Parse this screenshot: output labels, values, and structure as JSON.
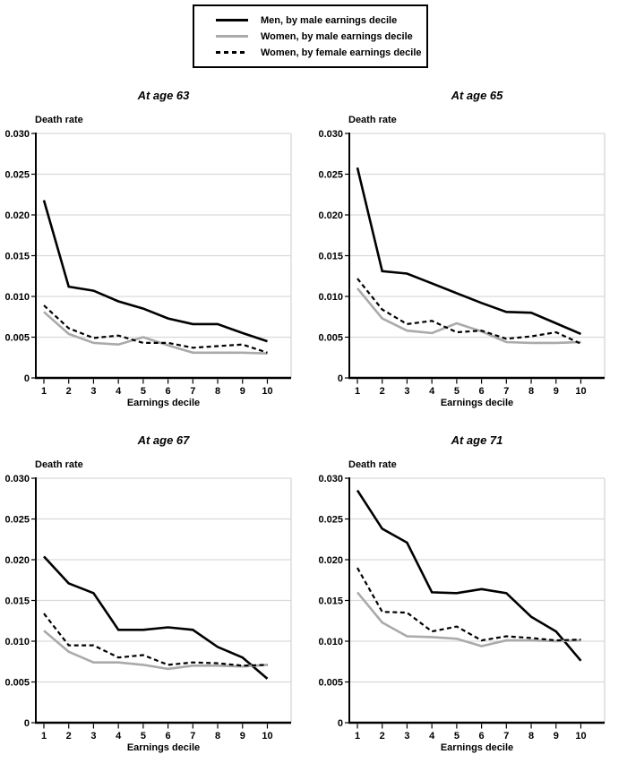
{
  "style": {
    "grid_color": "#d9d9d9",
    "axis_color": "#000000",
    "background": "#ffffff"
  },
  "legend": {
    "items": [
      {
        "label": "Men, by male earnings decile",
        "color": "#000000",
        "dash": null,
        "width": 2.6
      },
      {
        "label": "Women, by male earnings decile",
        "color": "#aaaaaa",
        "dash": null,
        "width": 2.6
      },
      {
        "label": "Women, by female earnings decile",
        "color": "#000000",
        "dash": "5 3.5",
        "width": 2.2
      }
    ],
    "position": "top-center"
  },
  "chart_data": [
    {
      "type": "line",
      "title": "At age 63",
      "ylabel": "Death rate",
      "xlabel": "Earnings decile",
      "x": [
        1,
        2,
        3,
        4,
        5,
        6,
        7,
        8,
        9,
        10
      ],
      "ylim": [
        0,
        0.03
      ],
      "yticks": [
        0,
        0.005,
        0.01,
        0.015,
        0.02,
        0.025,
        0.03
      ],
      "ytick_labels": [
        "0",
        "0.005",
        "0.010",
        "0.015",
        "0.020",
        "0.025",
        "0.030"
      ],
      "grid": true,
      "series": [
        {
          "name": "Men, by male earnings decile",
          "values": [
            0.0218,
            0.0112,
            0.0107,
            0.0094,
            0.0085,
            0.0073,
            0.0066,
            0.0066,
            0.0055,
            0.0045
          ]
        },
        {
          "name": "Women, by male earnings decile",
          "values": [
            0.0081,
            0.0054,
            0.0043,
            0.0041,
            0.005,
            0.004,
            0.0031,
            0.0031,
            0.0031,
            0.003
          ]
        },
        {
          "name": "Women, by female earnings decile",
          "values": [
            0.0089,
            0.0061,
            0.0049,
            0.0052,
            0.0043,
            0.0043,
            0.0037,
            0.0039,
            0.0041,
            0.0031
          ]
        }
      ]
    },
    {
      "type": "line",
      "title": "At age 65",
      "ylabel": "Death rate",
      "xlabel": "Earnings decile",
      "x": [
        1,
        2,
        3,
        4,
        5,
        6,
        7,
        8,
        9,
        10
      ],
      "ylim": [
        0,
        0.03
      ],
      "yticks": [
        0,
        0.005,
        0.01,
        0.015,
        0.02,
        0.025,
        0.03
      ],
      "ytick_labels": [
        "0",
        "0.005",
        "0.010",
        "0.015",
        "0.020",
        "0.025",
        "0.030"
      ],
      "grid": true,
      "series": [
        {
          "name": "Men, by male earnings decile",
          "values": [
            0.0258,
            0.0131,
            0.0128,
            0.0116,
            0.0104,
            0.0092,
            0.0081,
            0.008,
            0.0067,
            0.0054
          ]
        },
        {
          "name": "Women, by male earnings decile",
          "values": [
            0.011,
            0.0073,
            0.0058,
            0.0055,
            0.0067,
            0.0057,
            0.0044,
            0.0043,
            0.0043,
            0.0044
          ]
        },
        {
          "name": "Women, by female earnings decile",
          "values": [
            0.0122,
            0.0084,
            0.0066,
            0.007,
            0.0056,
            0.0058,
            0.0048,
            0.0051,
            0.0056,
            0.0042
          ]
        }
      ]
    },
    {
      "type": "line",
      "title": "At age 67",
      "ylabel": "Death rate",
      "xlabel": "Earnings decile",
      "x": [
        1,
        2,
        3,
        4,
        5,
        6,
        7,
        8,
        9,
        10
      ],
      "ylim": [
        0,
        0.03
      ],
      "yticks": [
        0,
        0.005,
        0.01,
        0.015,
        0.02,
        0.025,
        0.03
      ],
      "ytick_labels": [
        "0",
        "0.005",
        "0.010",
        "0.015",
        "0.020",
        "0.025",
        "0.030"
      ],
      "grid": true,
      "series": [
        {
          "name": "Men, by male earnings decile",
          "values": [
            0.0204,
            0.0171,
            0.0159,
            0.0114,
            0.0114,
            0.0117,
            0.0114,
            0.0093,
            0.008,
            0.0054
          ]
        },
        {
          "name": "Women, by male earnings decile",
          "values": [
            0.0113,
            0.0087,
            0.0074,
            0.0074,
            0.0071,
            0.0066,
            0.007,
            0.007,
            0.0069,
            0.0071
          ]
        },
        {
          "name": "Women, by female earnings decile",
          "values": [
            0.0134,
            0.0095,
            0.0095,
            0.008,
            0.0083,
            0.0071,
            0.0074,
            0.0073,
            0.007,
            0.0071
          ]
        }
      ]
    },
    {
      "type": "line",
      "title": "At age 71",
      "ylabel": "Death rate",
      "xlabel": "Earnings decile",
      "x": [
        1,
        2,
        3,
        4,
        5,
        6,
        7,
        8,
        9,
        10
      ],
      "ylim": [
        0,
        0.03
      ],
      "yticks": [
        0,
        0.005,
        0.01,
        0.015,
        0.02,
        0.025,
        0.03
      ],
      "ytick_labels": [
        "0",
        "0.005",
        "0.010",
        "0.015",
        "0.020",
        "0.025",
        "0.030"
      ],
      "grid": true,
      "series": [
        {
          "name": "Men, by male earnings decile",
          "values": [
            0.0285,
            0.0238,
            0.0221,
            0.016,
            0.0159,
            0.0164,
            0.0159,
            0.013,
            0.0112,
            0.0076
          ]
        },
        {
          "name": "Women, by male earnings decile",
          "values": [
            0.016,
            0.0123,
            0.0106,
            0.0105,
            0.0103,
            0.0094,
            0.0101,
            0.0101,
            0.01,
            0.0101
          ]
        },
        {
          "name": "Women, by female earnings decile",
          "values": [
            0.019,
            0.0136,
            0.0135,
            0.0112,
            0.0118,
            0.0101,
            0.0106,
            0.0104,
            0.0101,
            0.0102
          ]
        }
      ]
    }
  ]
}
